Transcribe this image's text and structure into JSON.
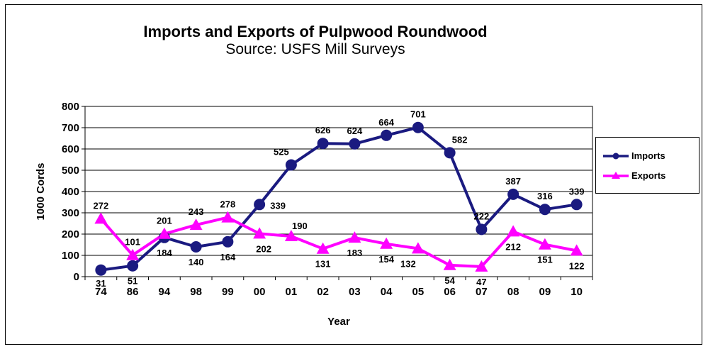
{
  "chart_data": {
    "type": "line",
    "title": "Imports and Exports of Pulpwood Roundwood",
    "subtitle": "Source: USFS Mill Surveys",
    "xlabel": "Year",
    "ylabel": "1000 Cords",
    "categories": [
      "74",
      "86",
      "94",
      "98",
      "99",
      "00",
      "01",
      "02",
      "03",
      "04",
      "05",
      "06",
      "07",
      "08",
      "09",
      "10"
    ],
    "ylim": [
      0,
      800
    ],
    "yticks": [
      "0",
      "100",
      "200",
      "300",
      "400",
      "500",
      "600",
      "700",
      "800"
    ],
    "grid": true,
    "legend_position": "right",
    "series": [
      {
        "name": "Imports",
        "color": "#1a1a80",
        "marker": "circle",
        "values": [
          31,
          51,
          184,
          140,
          164,
          339,
          525,
          626,
          624,
          664,
          701,
          582,
          222,
          387,
          316,
          339
        ]
      },
      {
        "name": "Exports",
        "color": "#ff00ff",
        "marker": "triangle",
        "values": [
          272,
          101,
          201,
          243,
          278,
          202,
          190,
          131,
          183,
          154,
          132,
          54,
          47,
          212,
          151,
          122
        ]
      }
    ]
  }
}
